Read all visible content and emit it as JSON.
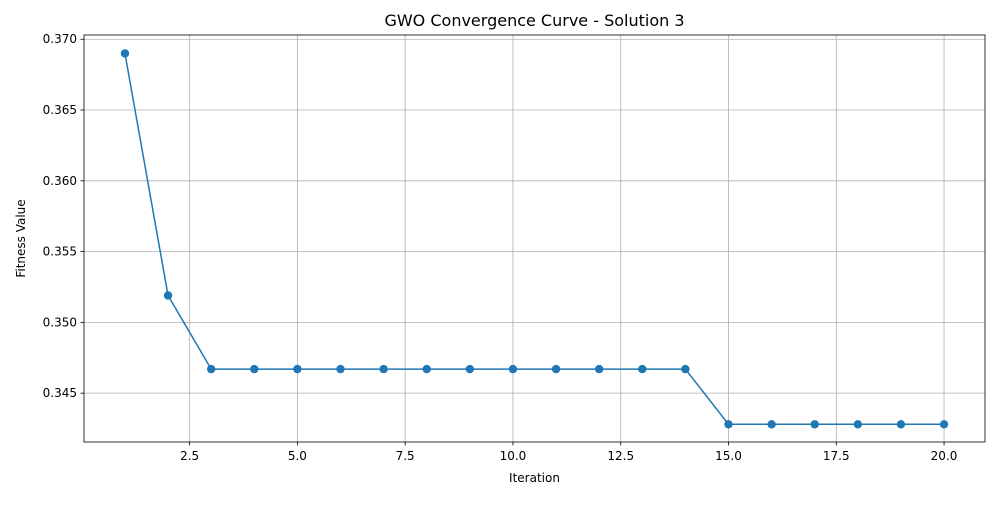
{
  "chart_data": {
    "type": "line",
    "title": "GWO Convergence Curve - Solution 3",
    "xlabel": "Iteration",
    "ylabel": "Fitness Value",
    "x": [
      1,
      2,
      3,
      4,
      5,
      6,
      7,
      8,
      9,
      10,
      11,
      12,
      13,
      14,
      15,
      16,
      17,
      18,
      19,
      20
    ],
    "series": [
      {
        "values": [
          0.369,
          0.3519,
          0.3467,
          0.3467,
          0.3467,
          0.3467,
          0.3467,
          0.3467,
          0.3467,
          0.3467,
          0.3467,
          0.3467,
          0.3467,
          0.3467,
          0.3428,
          0.3428,
          0.3428,
          0.3428,
          0.3428,
          0.3428
        ],
        "color": "#1f77b4",
        "marker": "circle"
      }
    ],
    "xlim": [
      0.05,
      20.95
    ],
    "ylim": [
      0.34155,
      0.3703
    ],
    "xticks": [
      2.5,
      5.0,
      7.5,
      10.0,
      12.5,
      15.0,
      17.5,
      20.0
    ],
    "xtick_labels": [
      "2.5",
      "5.0",
      "7.5",
      "10.0",
      "12.5",
      "15.0",
      "17.5",
      "20.0"
    ],
    "yticks": [
      0.345,
      0.35,
      0.355,
      0.36,
      0.365,
      0.37
    ],
    "ytick_labels": [
      "0.345",
      "0.350",
      "0.355",
      "0.360",
      "0.365",
      "0.370"
    ],
    "grid": true,
    "grid_color": "#b0b0b0",
    "axis_color": "#000000"
  }
}
